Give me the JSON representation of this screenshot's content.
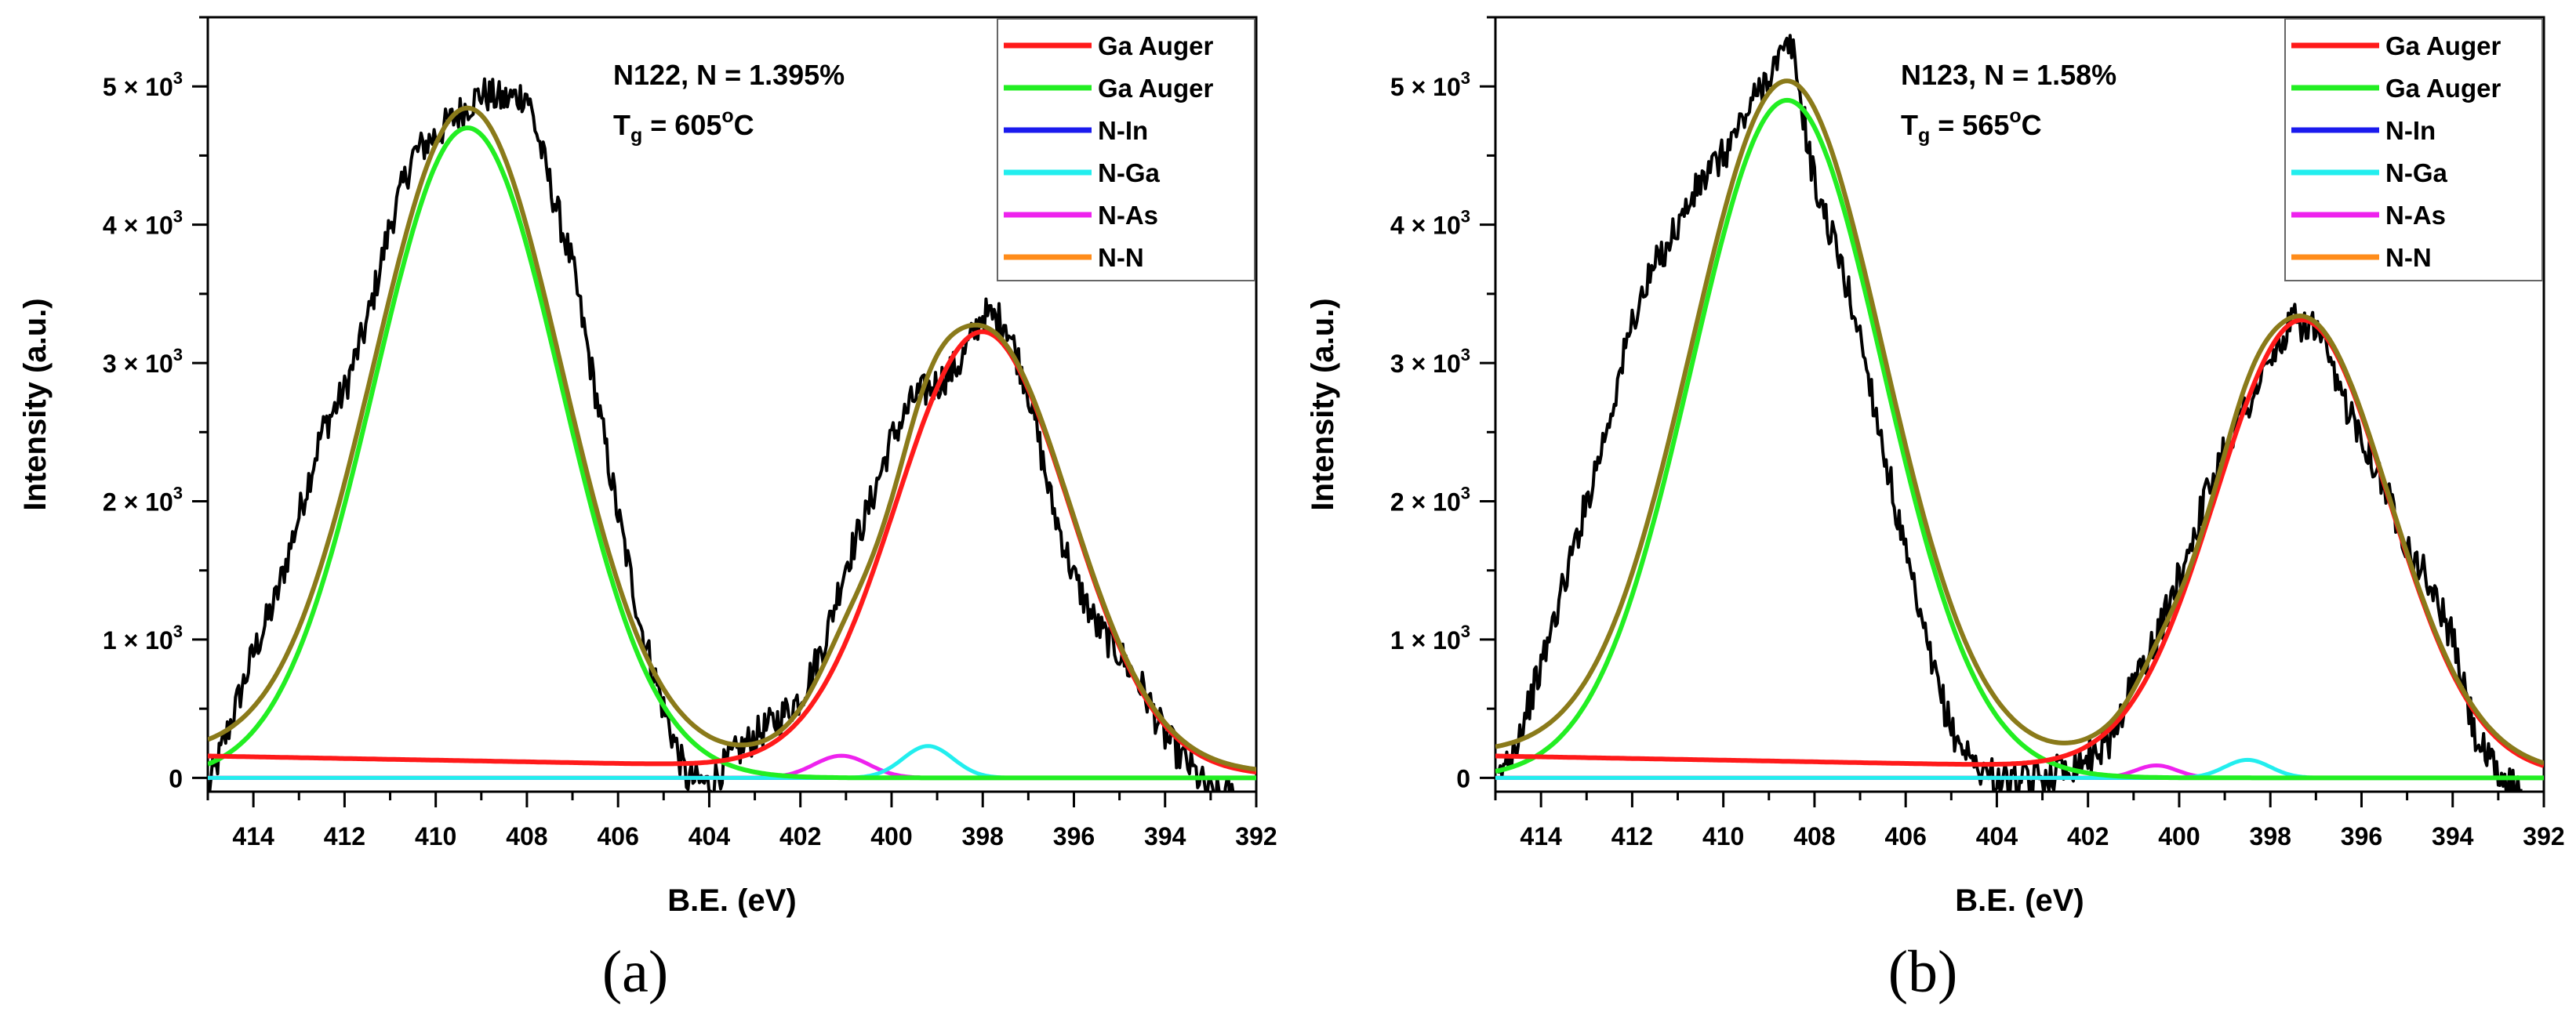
{
  "colors": {
    "data": "#000000",
    "ga_auger_1": "#ff1a1a",
    "ga_auger_2": "#22ee22",
    "n_in": "#1a1aee",
    "n_ga": "#22eeee",
    "n_as": "#ee22ee",
    "n_n": "#ff8c1a",
    "envelope": "#8a7a1a"
  },
  "chart_data": [
    {
      "type": "line",
      "panel_label": "(a)",
      "annotation": {
        "line1": "N122, N = 1.395%",
        "tg_prefix": "T",
        "tg_sub": "g",
        "tg_value": " = 605",
        "tg_sup": "o",
        "tg_unit": "C"
      },
      "xlabel": "B.E. (eV)",
      "ylabel": "Intensity (a.u.)",
      "xlim": [
        415,
        392
      ],
      "ylim": [
        -100,
        5500
      ],
      "xticks": [
        414,
        412,
        410,
        408,
        406,
        404,
        402,
        400,
        398,
        396,
        394,
        392
      ],
      "yticks": [
        {
          "value": 0,
          "base": "0",
          "exp": ""
        },
        {
          "value": 1000,
          "base": "1 × 10",
          "exp": "3"
        },
        {
          "value": 2000,
          "base": "2 × 10",
          "exp": "3"
        },
        {
          "value": 3000,
          "base": "3 × 10",
          "exp": "3"
        },
        {
          "value": 4000,
          "base": "4 × 10",
          "exp": "3"
        },
        {
          "value": 5000,
          "base": "5 × 10",
          "exp": "3"
        }
      ],
      "legend": [
        "Ga Auger",
        "Ga Auger",
        "N-In",
        "N-Ga",
        "N-As",
        "N-N"
      ],
      "components": {
        "ga_auger_1": {
          "center": 398.0,
          "amp": 3170,
          "sigma": 1.9,
          "tail_base": 20,
          "tail_slope": 6
        },
        "ga_auger_2": {
          "center": 409.3,
          "amp": 4700,
          "sigma": 2.05
        },
        "n_in": {
          "center": 398.0,
          "amp": 0,
          "sigma": 0.8
        },
        "n_ga": {
          "center": 399.2,
          "amp": 230,
          "sigma": 0.55
        },
        "n_as": {
          "center": 401.1,
          "amp": 160,
          "sigma": 0.6
        },
        "n_n": {
          "center": 403.0,
          "amp": 0,
          "sigma": 1.0
        }
      },
      "envelope_offset": 20,
      "measured_series": {
        "x": [
          415,
          414.5,
          414,
          413.5,
          413,
          412.5,
          412,
          411.5,
          411,
          410.5,
          410,
          409.5,
          409,
          408.5,
          408,
          407.5,
          407,
          406.5,
          406,
          405.5,
          405,
          404.5,
          404,
          403.5,
          403,
          402.5,
          402,
          401.5,
          401,
          400.5,
          400,
          399.5,
          399,
          398.5,
          398,
          397.5,
          397,
          396.5,
          396,
          395.5,
          395,
          394.5,
          394,
          393.5,
          393,
          392.5
        ],
        "y": [
          -100,
          400,
          900,
          1300,
          1900,
          2500,
          2800,
          3300,
          4000,
          4500,
          4650,
          4800,
          4950,
          4900,
          4950,
          4300,
          3700,
          2800,
          1900,
          1100,
          500,
          0,
          -50,
          150,
          300,
          420,
          580,
          950,
          1550,
          1950,
          2450,
          2750,
          2850,
          3000,
          3350,
          3300,
          2800,
          2000,
          1450,
          1100,
          900,
          650,
          300,
          100,
          -120,
          -120
        ]
      }
    },
    {
      "type": "line",
      "panel_label": "(b)",
      "annotation": {
        "line1": "N123, N = 1.58%",
        "tg_prefix": "T",
        "tg_sub": "g",
        "tg_value": " = 565",
        "tg_sup": "o",
        "tg_unit": "C"
      },
      "xlabel": "B.E. (eV)",
      "ylabel": "Intensity (a.u.)",
      "xlim": [
        415,
        392
      ],
      "ylim": [
        -100,
        5500
      ],
      "xticks": [
        414,
        412,
        410,
        408,
        406,
        404,
        402,
        400,
        398,
        396,
        394,
        392
      ],
      "yticks": [
        {
          "value": 0,
          "base": "0",
          "exp": ""
        },
        {
          "value": 1000,
          "base": "1 × 10",
          "exp": "3"
        },
        {
          "value": 2000,
          "base": "2 × 10",
          "exp": "3"
        },
        {
          "value": 3000,
          "base": "3 × 10",
          "exp": "3"
        },
        {
          "value": 4000,
          "base": "4 × 10",
          "exp": "3"
        },
        {
          "value": 5000,
          "base": "5 × 10",
          "exp": "3"
        }
      ],
      "legend": [
        "Ga Auger",
        "Ga Auger",
        "N-In",
        "N-Ga",
        "N-As",
        "N-N"
      ],
      "components": {
        "ga_auger_1": {
          "center": 397.3,
          "amp": 3260,
          "sigma": 1.9,
          "tail_base": 20,
          "tail_slope": 6
        },
        "ga_auger_2": {
          "center": 408.6,
          "amp": 4900,
          "sigma": 2.1
        },
        "n_in": {
          "center": 397.3,
          "amp": 0,
          "sigma": 0.8
        },
        "n_ga": {
          "center": 398.5,
          "amp": 130,
          "sigma": 0.5
        },
        "n_as": {
          "center": 400.5,
          "amp": 90,
          "sigma": 0.45
        },
        "n_n": {
          "center": 403.0,
          "amp": 0,
          "sigma": 1.0
        }
      },
      "envelope_offset": 20,
      "measured_series": {
        "x": [
          415,
          414.5,
          414,
          413.5,
          413,
          412.5,
          412,
          411.5,
          411,
          410.5,
          410,
          409.5,
          409,
          408.5,
          408,
          407.5,
          407,
          406.5,
          406,
          405.5,
          405,
          404.5,
          404,
          403.5,
          403,
          402.5,
          402,
          401.5,
          401,
          400.5,
          400,
          399.5,
          399,
          398.5,
          398,
          397.5,
          397,
          396.5,
          396,
          395.5,
          395,
          394.5,
          394,
          393.5,
          393,
          392.5
        ],
        "y": [
          -50,
          300,
          800,
          1400,
          2000,
          2600,
          3300,
          3700,
          4000,
          4300,
          4500,
          4800,
          5100,
          5300,
          4300,
          3800,
          3200,
          2400,
          1600,
          900,
          350,
          100,
          0,
          -50,
          0,
          80,
          150,
          280,
          700,
          1000,
          1450,
          1950,
          2400,
          2700,
          3000,
          3300,
          3250,
          2800,
          2500,
          2100,
          1700,
          1400,
          1000,
          300,
          0,
          -80
        ]
      }
    }
  ]
}
